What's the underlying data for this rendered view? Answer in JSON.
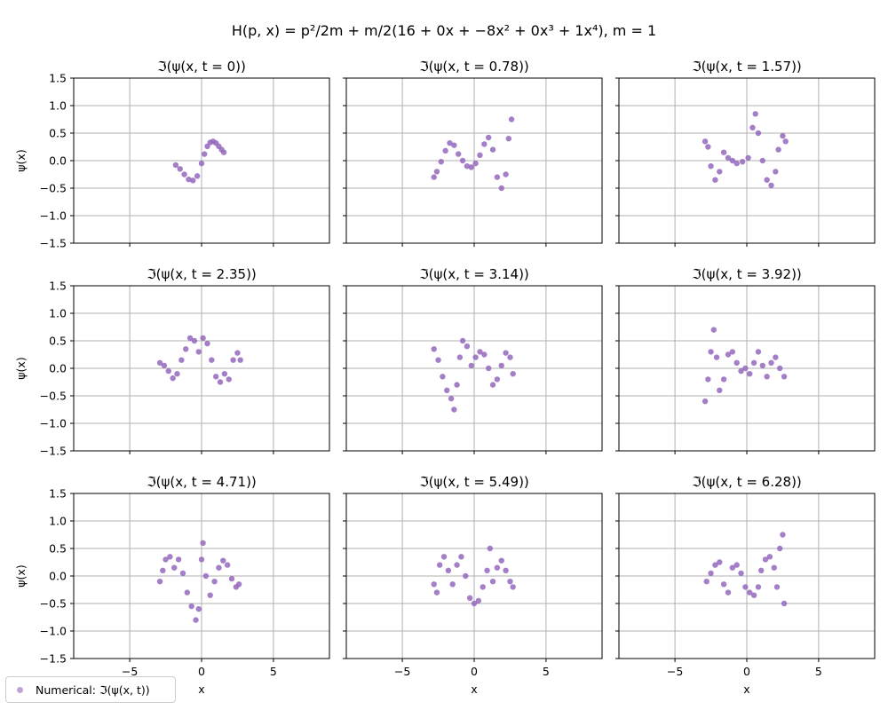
{
  "figure": {
    "suptitle": "H(p, x) = p²/2m + m/2(16 + 0x + −8x² + 0x³ + 1x⁴), m = 1"
  },
  "legend": {
    "label": "Numerical: ℑ(ψ(x, t))",
    "marker_color": "#9467bd"
  },
  "chart_data": {
    "type": "scatter",
    "layout": "3x3 grid, shared x and y axes",
    "xlabel": "x",
    "ylabel": "ψ(x)",
    "xlim": [
      -8.9,
      8.9
    ],
    "ylim": [
      -1.5,
      1.5
    ],
    "xticks": [
      -5,
      0,
      5
    ],
    "yticks": [
      -1.5,
      -1.0,
      -0.5,
      0.0,
      0.5,
      1.0,
      1.5
    ],
    "grid": true,
    "legend_position": "bottom-left",
    "series_color": "#9467bd",
    "panels": [
      {
        "title": "ℑ(ψ(x, t = 0))",
        "t": 0.0
      },
      {
        "title": "ℑ(ψ(x, t = 0.78))",
        "t": 0.78
      },
      {
        "title": "ℑ(ψ(x, t = 1.57))",
        "t": 1.57
      },
      {
        "title": "ℑ(ψ(x, t = 2.35))",
        "t": 2.35
      },
      {
        "title": "ℑ(ψ(x, t = 3.14))",
        "t": 3.14
      },
      {
        "title": "ℑ(ψ(x, t = 3.92))",
        "t": 3.92
      },
      {
        "title": "ℑ(ψ(x, t = 4.71))",
        "t": 4.71
      },
      {
        "title": "ℑ(ψ(x, t = 5.49))",
        "t": 5.49
      },
      {
        "title": "ℑ(ψ(x, t = 6.28))",
        "t": 6.28
      }
    ],
    "points": [
      [
        [
          -1.8,
          -0.08
        ],
        [
          -1.5,
          -0.15
        ],
        [
          -1.2,
          -0.25
        ],
        [
          -0.9,
          -0.34
        ],
        [
          -0.6,
          -0.36
        ],
        [
          -0.3,
          -0.28
        ],
        [
          0.0,
          -0.05
        ],
        [
          0.2,
          0.12
        ],
        [
          0.4,
          0.26
        ],
        [
          0.6,
          0.33
        ],
        [
          0.8,
          0.35
        ],
        [
          1.0,
          0.32
        ],
        [
          1.2,
          0.26
        ],
        [
          1.4,
          0.2
        ],
        [
          1.55,
          0.15
        ]
      ],
      [
        [
          -2.8,
          -0.3
        ],
        [
          -2.6,
          -0.2
        ],
        [
          -2.3,
          -0.02
        ],
        [
          -2.0,
          0.18
        ],
        [
          -1.7,
          0.32
        ],
        [
          -1.4,
          0.28
        ],
        [
          -1.1,
          0.12
        ],
        [
          -0.8,
          0.0
        ],
        [
          -0.5,
          -0.1
        ],
        [
          -0.2,
          -0.12
        ],
        [
          0.1,
          -0.05
        ],
        [
          0.4,
          0.1
        ],
        [
          0.7,
          0.3
        ],
        [
          1.0,
          0.42
        ],
        [
          1.3,
          0.2
        ],
        [
          1.6,
          -0.3
        ],
        [
          1.9,
          -0.5
        ],
        [
          2.2,
          -0.25
        ],
        [
          2.4,
          0.4
        ],
        [
          2.6,
          0.75
        ]
      ],
      [
        [
          -2.9,
          0.35
        ],
        [
          -2.7,
          0.25
        ],
        [
          -2.5,
          -0.1
        ],
        [
          -2.2,
          -0.35
        ],
        [
          -1.9,
          -0.2
        ],
        [
          -1.6,
          0.15
        ],
        [
          -1.3,
          0.05
        ],
        [
          -1.0,
          0.0
        ],
        [
          -0.7,
          -0.05
        ],
        [
          -0.3,
          -0.02
        ],
        [
          0.1,
          0.05
        ],
        [
          0.4,
          0.6
        ],
        [
          0.6,
          0.85
        ],
        [
          0.8,
          0.5
        ],
        [
          1.1,
          0.0
        ],
        [
          1.4,
          -0.35
        ],
        [
          1.7,
          -0.45
        ],
        [
          2.0,
          -0.2
        ],
        [
          2.2,
          0.2
        ],
        [
          2.5,
          0.45
        ],
        [
          2.7,
          0.35
        ]
      ],
      [
        [
          -2.9,
          0.1
        ],
        [
          -2.6,
          0.05
        ],
        [
          -2.3,
          -0.05
        ],
        [
          -2.0,
          -0.18
        ],
        [
          -1.7,
          -0.1
        ],
        [
          -1.4,
          0.15
        ],
        [
          -1.1,
          0.35
        ],
        [
          -0.8,
          0.55
        ],
        [
          -0.5,
          0.5
        ],
        [
          -0.2,
          0.3
        ],
        [
          0.1,
          0.55
        ],
        [
          0.4,
          0.45
        ],
        [
          0.7,
          0.15
        ],
        [
          1.0,
          -0.15
        ],
        [
          1.3,
          -0.25
        ],
        [
          1.6,
          -0.1
        ],
        [
          1.9,
          -0.2
        ],
        [
          2.2,
          0.15
        ],
        [
          2.5,
          0.28
        ],
        [
          2.7,
          0.15
        ]
      ],
      [
        [
          -2.8,
          0.35
        ],
        [
          -2.5,
          0.15
        ],
        [
          -2.2,
          -0.15
        ],
        [
          -1.9,
          -0.4
        ],
        [
          -1.6,
          -0.55
        ],
        [
          -1.4,
          -0.75
        ],
        [
          -1.2,
          -0.3
        ],
        [
          -1.0,
          0.2
        ],
        [
          -0.8,
          0.5
        ],
        [
          -0.5,
          0.4
        ],
        [
          -0.2,
          0.05
        ],
        [
          0.1,
          0.2
        ],
        [
          0.4,
          0.3
        ],
        [
          0.7,
          0.25
        ],
        [
          1.0,
          0.0
        ],
        [
          1.3,
          -0.3
        ],
        [
          1.6,
          -0.2
        ],
        [
          1.9,
          0.05
        ],
        [
          2.2,
          0.28
        ],
        [
          2.5,
          0.2
        ],
        [
          2.7,
          -0.1
        ]
      ],
      [
        [
          -2.9,
          -0.6
        ],
        [
          -2.7,
          -0.2
        ],
        [
          -2.5,
          0.3
        ],
        [
          -2.3,
          0.7
        ],
        [
          -2.1,
          0.2
        ],
        [
          -1.9,
          -0.4
        ],
        [
          -1.6,
          -0.2
        ],
        [
          -1.3,
          0.25
        ],
        [
          -1.0,
          0.3
        ],
        [
          -0.7,
          0.1
        ],
        [
          -0.4,
          -0.05
        ],
        [
          -0.1,
          0.0
        ],
        [
          0.2,
          -0.1
        ],
        [
          0.5,
          0.1
        ],
        [
          0.8,
          0.3
        ],
        [
          1.1,
          0.05
        ],
        [
          1.4,
          -0.15
        ],
        [
          1.7,
          0.1
        ],
        [
          2.0,
          0.2
        ],
        [
          2.3,
          0.0
        ],
        [
          2.6,
          -0.15
        ]
      ],
      [
        [
          -2.9,
          -0.1
        ],
        [
          -2.7,
          0.1
        ],
        [
          -2.5,
          0.3
        ],
        [
          -2.2,
          0.35
        ],
        [
          -1.9,
          0.15
        ],
        [
          -1.6,
          0.3
        ],
        [
          -1.3,
          0.05
        ],
        [
          -1.0,
          -0.3
        ],
        [
          -0.7,
          -0.55
        ],
        [
          -0.4,
          -0.8
        ],
        [
          -0.2,
          -0.6
        ],
        [
          0.0,
          0.3
        ],
        [
          0.1,
          0.6
        ],
        [
          0.3,
          0.0
        ],
        [
          0.6,
          -0.35
        ],
        [
          0.9,
          -0.1
        ],
        [
          1.2,
          0.15
        ],
        [
          1.5,
          0.28
        ],
        [
          1.8,
          0.2
        ],
        [
          2.1,
          -0.05
        ],
        [
          2.4,
          -0.2
        ],
        [
          2.6,
          -0.15
        ]
      ],
      [
        [
          -2.8,
          -0.15
        ],
        [
          -2.6,
          -0.3
        ],
        [
          -2.4,
          0.2
        ],
        [
          -2.1,
          0.35
        ],
        [
          -1.8,
          0.1
        ],
        [
          -1.5,
          -0.15
        ],
        [
          -1.2,
          0.2
        ],
        [
          -0.9,
          0.35
        ],
        [
          -0.6,
          0.0
        ],
        [
          -0.3,
          -0.4
        ],
        [
          0.0,
          -0.5
        ],
        [
          0.3,
          -0.45
        ],
        [
          0.6,
          -0.2
        ],
        [
          0.9,
          0.1
        ],
        [
          1.1,
          0.5
        ],
        [
          1.3,
          -0.1
        ],
        [
          1.6,
          0.15
        ],
        [
          1.9,
          0.28
        ],
        [
          2.2,
          0.1
        ],
        [
          2.5,
          -0.1
        ],
        [
          2.7,
          -0.2
        ]
      ],
      [
        [
          -2.8,
          -0.1
        ],
        [
          -2.5,
          0.05
        ],
        [
          -2.2,
          0.2
        ],
        [
          -1.9,
          0.25
        ],
        [
          -1.6,
          -0.15
        ],
        [
          -1.3,
          -0.3
        ],
        [
          -1.0,
          0.15
        ],
        [
          -0.7,
          0.2
        ],
        [
          -0.4,
          0.05
        ],
        [
          -0.1,
          -0.2
        ],
        [
          0.2,
          -0.3
        ],
        [
          0.5,
          -0.35
        ],
        [
          0.8,
          -0.2
        ],
        [
          1.0,
          0.1
        ],
        [
          1.3,
          0.3
        ],
        [
          1.6,
          0.35
        ],
        [
          1.9,
          0.15
        ],
        [
          2.1,
          -0.2
        ],
        [
          2.3,
          0.5
        ],
        [
          2.5,
          0.75
        ],
        [
          2.6,
          -0.5
        ]
      ]
    ]
  }
}
